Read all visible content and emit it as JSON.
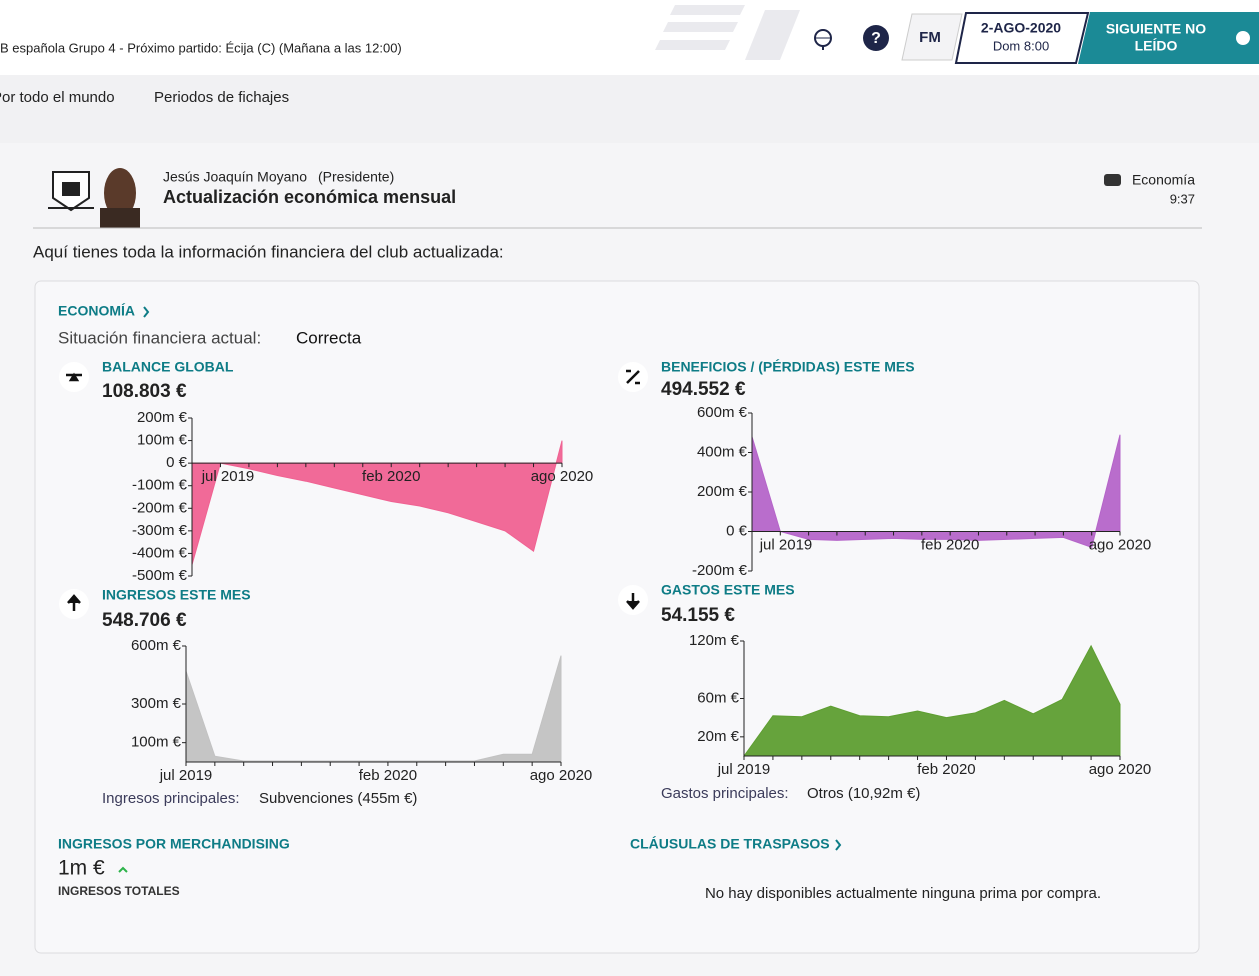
{
  "topbar": {
    "status": "B española Grupo 4 - Próximo partido: Écija (C)  (Mañana a las 12:00)",
    "logo": "FM",
    "date": "2-AGO-2020",
    "time": "Dom 8:00",
    "next": [
      "SIGUIENTE NO",
      "LEÍDO"
    ]
  },
  "nav": [
    "Por todo el mundo",
    "Periodos de fichajes"
  ],
  "message": {
    "sender": "Jesús Joaquín Moyano",
    "role": "(Presidente)",
    "subject": "Actualización económica mensual",
    "tag": "Economía",
    "time": "9:37",
    "intro": "Aquí tienes toda la información financiera del club actualizada:"
  },
  "panel": {
    "heading": "ECONOMÍA",
    "status_label": "Situación financiera actual:",
    "status": "Correcta",
    "merch": {
      "title": "INGRESOS POR MERCHANDISING",
      "value": "1m €",
      "sub": "INGRESOS TOTALES"
    },
    "transfers": {
      "title": "CLÁUSULAS DE TRASPASOS",
      "text": "No hay disponibles actualmente ninguna prima por compra."
    }
  },
  "chart_data": [
    {
      "type": "area",
      "title": "BALANCE GLOBAL",
      "headline": "108.803 €",
      "categories": [
        "jul 2019",
        null,
        null,
        null,
        null,
        null,
        null,
        "feb 2020",
        null,
        null,
        null,
        null,
        null,
        "ago 2020"
      ],
      "values": [
        -450,
        0,
        -25,
        -55,
        -80,
        -110,
        -140,
        -170,
        -190,
        -220,
        -260,
        -300,
        -390,
        100
      ],
      "color": "#f06292",
      "ylim": [
        -500,
        200
      ],
      "yticks": [
        {
          "value": 200,
          "label": "200m €"
        },
        {
          "value": 100,
          "label": "100m €"
        },
        {
          "value": 0,
          "label": "0 €"
        },
        {
          "value": -100,
          "label": "-100m €"
        },
        {
          "value": -200,
          "label": "-200m €"
        },
        {
          "value": -300,
          "label": "-300m €"
        },
        {
          "value": -400,
          "label": "-400m €"
        },
        {
          "value": -500,
          "label": "-500m €"
        }
      ]
    },
    {
      "type": "area",
      "title": "BENEFICIOS / (PÉRDIDAS) ESTE MES",
      "headline": "494.552 €",
      "categories": [
        "jul 2019",
        null,
        null,
        null,
        null,
        null,
        null,
        "feb 2020",
        null,
        null,
        null,
        null,
        null,
        "ago 2020"
      ],
      "values": [
        480,
        0,
        -40,
        -45,
        -40,
        -35,
        -40,
        -40,
        -45,
        -40,
        -35,
        -30,
        -80,
        490
      ],
      "color": "#b565c9",
      "ylim": [
        -200,
        600
      ],
      "yticks": [
        {
          "value": 600,
          "label": "600m €"
        },
        {
          "value": 400,
          "label": "400m €"
        },
        {
          "value": 200,
          "label": "200m €"
        },
        {
          "value": 0,
          "label": "0 €"
        },
        {
          "value": -200,
          "label": "-200m €"
        }
      ]
    },
    {
      "type": "area",
      "title": "INGRESOS ESTE MES",
      "headline": "548.706 €",
      "categories": [
        "jul 2019",
        null,
        null,
        null,
        null,
        null,
        null,
        "feb 2020",
        null,
        null,
        null,
        null,
        null,
        "ago 2020"
      ],
      "values": [
        470,
        30,
        5,
        5,
        5,
        5,
        5,
        5,
        5,
        5,
        5,
        40,
        40,
        550
      ],
      "color": "#c2c2c2",
      "ylim": [
        0,
        600
      ],
      "yticks": [
        {
          "value": 600,
          "label": "600m €"
        },
        {
          "value": 300,
          "label": "300m €"
        },
        {
          "value": 100,
          "label": "100m €"
        }
      ],
      "footnote_label": "Ingresos principales:",
      "footnote": "Subvenciones (455m €)"
    },
    {
      "type": "area",
      "title": "GASTOS ESTE MES",
      "headline": "54.155 €",
      "categories": [
        "jul 2019",
        null,
        null,
        null,
        null,
        null,
        null,
        "feb 2020",
        null,
        null,
        null,
        null,
        null,
        "ago 2020"
      ],
      "values": [
        0,
        42,
        41,
        52,
        42,
        41,
        47,
        40,
        45,
        58,
        44,
        59,
        115,
        54
      ],
      "color": "#5e9e31",
      "ylim": [
        0,
        120
      ],
      "yticks": [
        {
          "value": 120,
          "label": "120m €"
        },
        {
          "value": 60,
          "label": "60m €"
        },
        {
          "value": 20,
          "label": "20m €"
        }
      ],
      "footnote_label": "Gastos principales:",
      "footnote": "Otros (10,92m €)"
    }
  ]
}
